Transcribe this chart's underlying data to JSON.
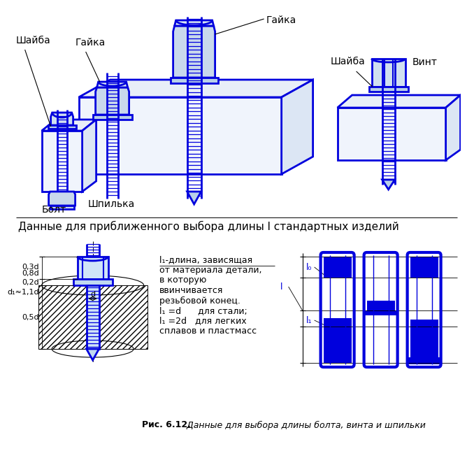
{
  "bg_color": "#ffffff",
  "blue": "#0000dd",
  "blue2": "#2222cc",
  "black": "#000000",
  "gray_hatch": "#cccccc",
  "section_title": "Данные для приближенного выбора длины l стандартных изделий",
  "caption_bold": "Рис. 6.12.",
  "caption_rest": " Данные для выбора длины болта, винта и шпильки",
  "text_block_line1": "l₁-длина, зависящая",
  "text_block_lines": [
    "от материала детали,",
    "в которую",
    "ввинчивается",
    "резьбовой конец.",
    "l₁ =d      для стали;",
    "l₁ =2d   для легких",
    "сплавов и пластмасс"
  ],
  "dim_labels_left": [
    "0,3d",
    "0,8d",
    "0,2d",
    "d₁≈1,1d",
    "0,5d"
  ],
  "dim_label_d": "d",
  "dim_l_labels": [
    "l₀",
    "l",
    "l₁"
  ],
  "labels_3d": {
    "shaiba_tl": "Шайба",
    "gaika_tl": "Гайка",
    "gaika_tr": "Гайка",
    "shaiba_tr": "Шайба",
    "vint": "Винт",
    "bolt": "Болт",
    "shpilka": "Шпилька"
  }
}
